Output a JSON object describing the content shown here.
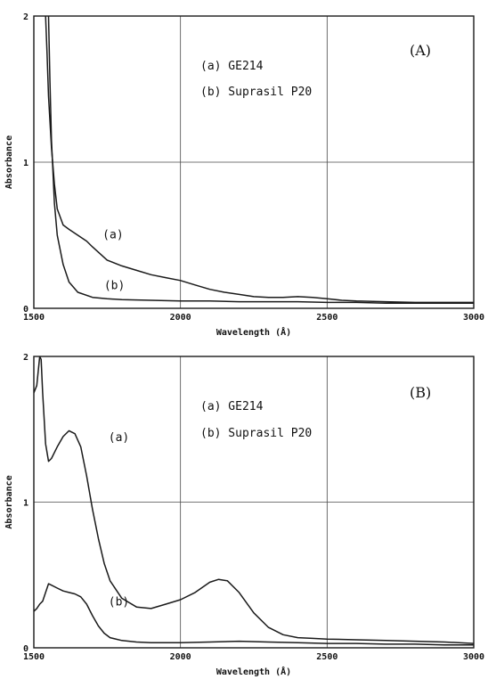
{
  "chart_data": [
    {
      "type": "line",
      "panel_label": "(A)",
      "xlabel": "Wavelength (Å)",
      "ylabel": "Absorbance",
      "xlim": [
        1500,
        3000
      ],
      "ylim": [
        0,
        2
      ],
      "xticks": [
        "1500",
        "2000",
        "2500",
        "3000"
      ],
      "yticks": [
        "0",
        "1",
        "2"
      ],
      "grid": true,
      "legend_entries": [
        "(a) GE214",
        "(b) Suprasil P20"
      ],
      "series": [
        {
          "name": "(a)",
          "x": [
            1540,
            1545,
            1550,
            1560,
            1570,
            1580,
            1600,
            1620,
            1650,
            1680,
            1700,
            1750,
            1800,
            1850,
            1900,
            1950,
            2000,
            2050,
            2100,
            2150,
            2200,
            2250,
            2300,
            2350,
            2400,
            2450,
            2500,
            2550,
            2600,
            2700,
            2800,
            2900,
            3000
          ],
          "y": [
            2.0,
            1.75,
            1.45,
            1.1,
            0.85,
            0.68,
            0.57,
            0.54,
            0.5,
            0.46,
            0.42,
            0.33,
            0.29,
            0.26,
            0.23,
            0.21,
            0.19,
            0.16,
            0.13,
            0.11,
            0.095,
            0.08,
            0.075,
            0.075,
            0.08,
            0.075,
            0.065,
            0.055,
            0.05,
            0.045,
            0.04,
            0.04,
            0.04
          ]
        },
        {
          "name": "(b)",
          "x": [
            1550,
            1555,
            1560,
            1570,
            1580,
            1600,
            1620,
            1650,
            1700,
            1750,
            1800,
            1900,
            2000,
            2100,
            2200,
            2300,
            2400,
            2500,
            2600,
            2700,
            2800,
            2900,
            3000
          ],
          "y": [
            2.0,
            1.55,
            1.15,
            0.72,
            0.5,
            0.3,
            0.18,
            0.11,
            0.075,
            0.065,
            0.06,
            0.055,
            0.05,
            0.05,
            0.045,
            0.045,
            0.045,
            0.04,
            0.04,
            0.035,
            0.035,
            0.035,
            0.035
          ]
        }
      ],
      "curve_labels": [
        {
          "text": "(a)",
          "x": 1770,
          "y": 0.48
        },
        {
          "text": "(b)",
          "x": 1775,
          "y": 0.13
        }
      ]
    },
    {
      "type": "line",
      "panel_label": "(B)",
      "xlabel": "Wavelength (Å)",
      "ylabel": "Absorbance",
      "xlim": [
        1500,
        3000
      ],
      "ylim": [
        0,
        2
      ],
      "xticks": [
        "1500",
        "2000",
        "2500",
        "3000"
      ],
      "yticks": [
        "0",
        "1",
        "2"
      ],
      "grid": true,
      "legend_entries": [
        "(a) GE214",
        "(b) Suprasil P20"
      ],
      "series": [
        {
          "name": "(a)",
          "x": [
            1500,
            1510,
            1520,
            1525,
            1530,
            1540,
            1550,
            1560,
            1580,
            1600,
            1620,
            1640,
            1660,
            1680,
            1700,
            1720,
            1740,
            1760,
            1800,
            1850,
            1900,
            1950,
            2000,
            2050,
            2100,
            2130,
            2160,
            2200,
            2250,
            2300,
            2350,
            2400,
            2450,
            2500,
            2600,
            2700,
            2800,
            2900,
            3000
          ],
          "y": [
            1.75,
            1.8,
            2.0,
            1.98,
            1.75,
            1.4,
            1.28,
            1.3,
            1.38,
            1.45,
            1.49,
            1.47,
            1.38,
            1.18,
            0.95,
            0.75,
            0.58,
            0.46,
            0.34,
            0.28,
            0.27,
            0.3,
            0.33,
            0.38,
            0.45,
            0.47,
            0.46,
            0.38,
            0.24,
            0.14,
            0.09,
            0.07,
            0.065,
            0.06,
            0.055,
            0.05,
            0.045,
            0.04,
            0.03
          ]
        },
        {
          "name": "(b)",
          "x": [
            1500,
            1510,
            1520,
            1530,
            1540,
            1550,
            1560,
            1580,
            1600,
            1620,
            1640,
            1660,
            1680,
            1700,
            1720,
            1740,
            1760,
            1800,
            1850,
            1900,
            2000,
            2100,
            2200,
            2300,
            2400,
            2500,
            2600,
            2700,
            2800,
            2900,
            3000
          ],
          "y": [
            0.25,
            0.27,
            0.3,
            0.32,
            0.38,
            0.44,
            0.43,
            0.41,
            0.39,
            0.38,
            0.37,
            0.35,
            0.3,
            0.22,
            0.15,
            0.1,
            0.07,
            0.05,
            0.04,
            0.035,
            0.035,
            0.04,
            0.045,
            0.04,
            0.035,
            0.03,
            0.03,
            0.025,
            0.025,
            0.02,
            0.02
          ]
        }
      ],
      "curve_labels": [
        {
          "text": "(a)",
          "x": 1790,
          "y": 1.42
        },
        {
          "text": "(b)",
          "x": 1790,
          "y": 0.29
        }
      ]
    }
  ]
}
